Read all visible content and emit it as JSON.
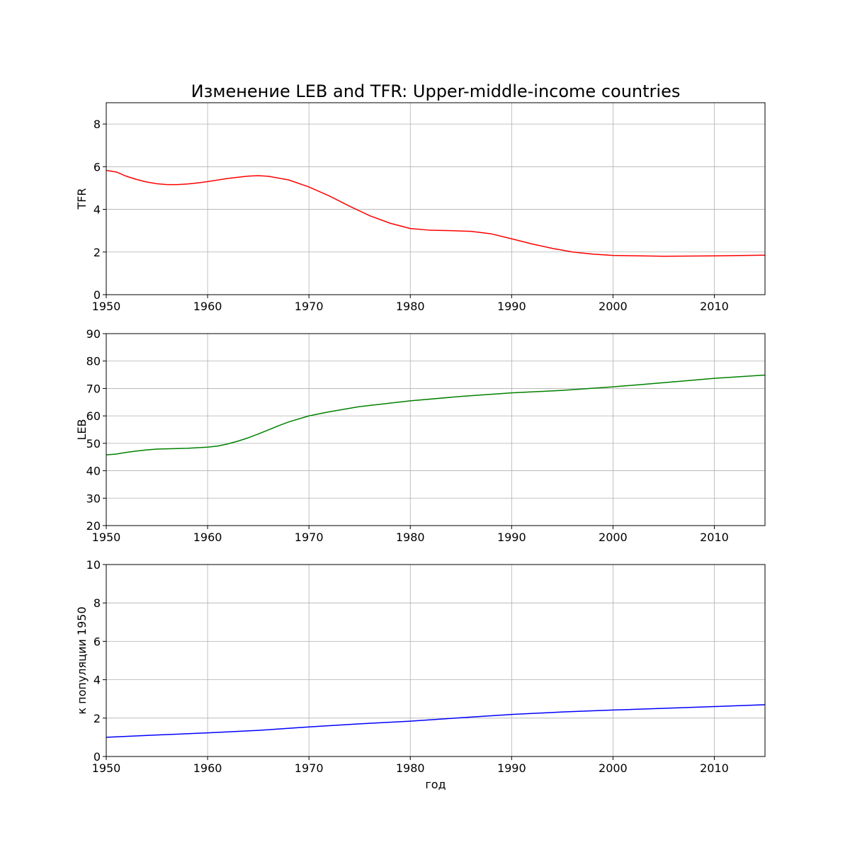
{
  "chart_data": [
    {
      "type": "line",
      "title": "Изменение LEB and TFR: Upper-middle-income countries",
      "xlabel": "",
      "ylabel": "TFR",
      "xlim": [
        1950,
        2015
      ],
      "ylim": [
        0,
        9
      ],
      "xticks": [
        1950,
        1960,
        1970,
        1980,
        1990,
        2000,
        2010
      ],
      "yticks": [
        0,
        2,
        4,
        6,
        8
      ],
      "grid": true,
      "color": "#ff0000",
      "x": [
        1950,
        1951,
        1952,
        1953,
        1954,
        1955,
        1956,
        1957,
        1958,
        1959,
        1960,
        1962,
        1964,
        1965,
        1966,
        1968,
        1970,
        1972,
        1974,
        1976,
        1978,
        1980,
        1982,
        1984,
        1986,
        1988,
        1990,
        1992,
        1994,
        1996,
        1998,
        2000,
        2005,
        2010,
        2015
      ],
      "y": [
        5.83,
        5.75,
        5.55,
        5.4,
        5.28,
        5.2,
        5.16,
        5.16,
        5.19,
        5.24,
        5.3,
        5.45,
        5.56,
        5.58,
        5.55,
        5.38,
        5.05,
        4.63,
        4.15,
        3.7,
        3.35,
        3.1,
        3.02,
        3.0,
        2.97,
        2.85,
        2.62,
        2.38,
        2.17,
        2.0,
        1.9,
        1.84,
        1.8,
        1.82,
        1.85
      ]
    },
    {
      "type": "line",
      "xlabel": "",
      "ylabel": "LEB",
      "xlim": [
        1950,
        2015
      ],
      "ylim": [
        20,
        90
      ],
      "xticks": [
        1950,
        1960,
        1970,
        1980,
        1990,
        2000,
        2010
      ],
      "yticks": [
        20,
        30,
        40,
        50,
        60,
        70,
        80,
        90
      ],
      "grid": true,
      "color": "#008000",
      "x": [
        1950,
        1951,
        1952,
        1953,
        1954,
        1955,
        1956,
        1958,
        1960,
        1961,
        1962,
        1963,
        1964,
        1965,
        1966,
        1967,
        1968,
        1970,
        1972,
        1975,
        1980,
        1985,
        1990,
        1995,
        2000,
        2005,
        2010,
        2015
      ],
      "y": [
        45.8,
        46.1,
        46.7,
        47.2,
        47.6,
        47.9,
        48.0,
        48.2,
        48.6,
        49.0,
        49.8,
        50.8,
        52.0,
        53.4,
        54.9,
        56.4,
        57.8,
        60.0,
        61.5,
        63.4,
        65.5,
        67.1,
        68.4,
        69.3,
        70.6,
        72.1,
        73.7,
        74.9
      ]
    },
    {
      "type": "line",
      "xlabel": "год",
      "ylabel": "к популяции 1950",
      "xlim": [
        1950,
        2015
      ],
      "ylim": [
        0,
        10
      ],
      "xticks": [
        1950,
        1960,
        1970,
        1980,
        1990,
        2000,
        2010
      ],
      "yticks": [
        0,
        2,
        4,
        6,
        8,
        10
      ],
      "grid": true,
      "color": "#0000ff",
      "x": [
        1950,
        1955,
        1960,
        1965,
        1970,
        1975,
        1980,
        1985,
        1990,
        1995,
        2000,
        2005,
        2010,
        2015
      ],
      "y": [
        1.0,
        1.12,
        1.23,
        1.36,
        1.54,
        1.7,
        1.84,
        2.02,
        2.19,
        2.32,
        2.42,
        2.51,
        2.6,
        2.7
      ]
    }
  ]
}
